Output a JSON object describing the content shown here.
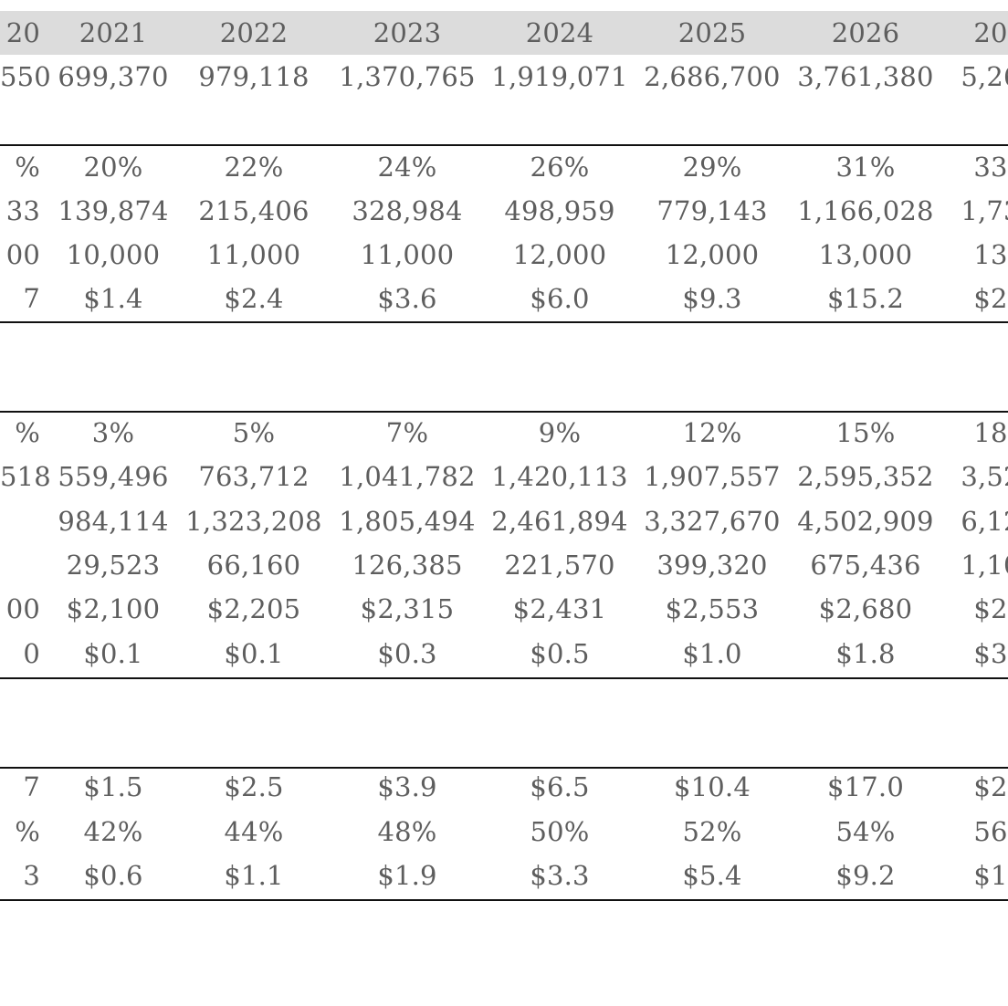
{
  "header": {
    "cells": [
      "20",
      "2021",
      "2022",
      "2023",
      "2024",
      "2025",
      "2026",
      "20"
    ]
  },
  "sections": [
    {
      "rows": [
        [
          "550",
          "699,370",
          "979,118",
          "1,370,765",
          "1,919,071",
          "2,686,700",
          "3,761,380",
          "5,26"
        ]
      ]
    },
    {
      "rows": [
        [
          "%",
          "20%",
          "22%",
          "24%",
          "26%",
          "29%",
          "31%",
          "33"
        ],
        [
          "33",
          "139,874",
          "215,406",
          "328,984",
          "498,959",
          "779,143",
          "1,166,028",
          "1,73"
        ],
        [
          "00",
          "10,000",
          "11,000",
          "11,000",
          "12,000",
          "12,000",
          "13,000",
          "13"
        ],
        [
          "7",
          "$1.4",
          "$2.4",
          "$3.6",
          "$6.0",
          "$9.3",
          "$15.2",
          "$2"
        ]
      ]
    },
    {
      "rows": [
        [
          "%",
          "3%",
          "5%",
          "7%",
          "9%",
          "12%",
          "15%",
          "18"
        ],
        [
          "518",
          "559,496",
          "763,712",
          "1,041,782",
          "1,420,113",
          "1,907,557",
          "2,595,352",
          "3,52"
        ],
        [
          "",
          "984,114",
          "1,323,208",
          "1,805,494",
          "2,461,894",
          "3,327,670",
          "4,502,909",
          "6,12"
        ],
        [
          "",
          "29,523",
          "66,160",
          "126,385",
          "221,570",
          "399,320",
          "675,436",
          "1,10"
        ],
        [
          "00",
          "$2,100",
          "$2,205",
          "$2,315",
          "$2,431",
          "$2,553",
          "$2,680",
          "$2"
        ],
        [
          "0",
          "$0.1",
          "$0.1",
          "$0.3",
          "$0.5",
          "$1.0",
          "$1.8",
          "$3"
        ]
      ]
    },
    {
      "rows": [
        [
          "7",
          "$1.5",
          "$2.5",
          "$3.9",
          "$6.5",
          "$10.4",
          "$17.0",
          "$2"
        ],
        [
          "%",
          "42%",
          "44%",
          "48%",
          "50%",
          "52%",
          "54%",
          "56"
        ],
        [
          "3",
          "$0.6",
          "$1.1",
          "$1.9",
          "$3.3",
          "$5.4",
          "$9.2",
          "$1"
        ]
      ]
    }
  ]
}
